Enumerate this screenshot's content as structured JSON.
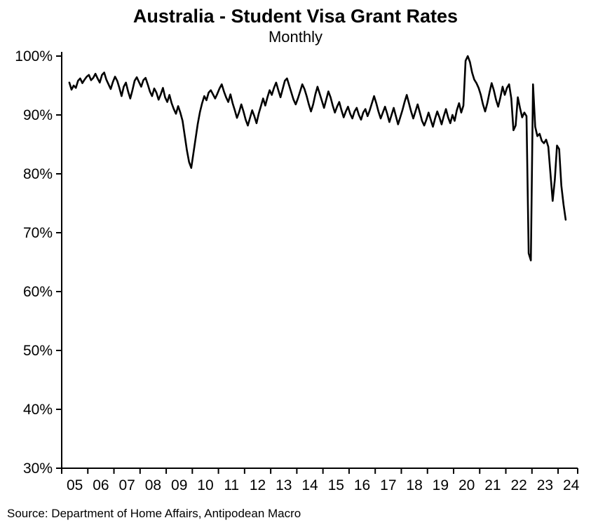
{
  "chart_data": {
    "type": "line",
    "title": "Australia - Student Visa Grant Rates",
    "subtitle": "Monthly",
    "source": "Source: Department of Home Affairs, Antipodean Macro",
    "series_name": "Student visa grant rate",
    "line_color": "#000000",
    "axis_color": "#000000",
    "background_color": "#ffffff",
    "grid": false,
    "legend": false,
    "ylim": [
      30,
      100
    ],
    "y_ticks": [
      {
        "v": 100,
        "label": "100%"
      },
      {
        "v": 90,
        "label": "90%"
      },
      {
        "v": 80,
        "label": "80%"
      },
      {
        "v": 70,
        "label": "70%"
      },
      {
        "v": 60,
        "label": "60%"
      },
      {
        "v": 50,
        "label": "50%"
      },
      {
        "v": 40,
        "label": "40%"
      },
      {
        "v": 30,
        "label": "30%"
      }
    ],
    "x_range": [
      2005,
      2024.75
    ],
    "x_tick_labels": [
      "05",
      "06",
      "07",
      "08",
      "09",
      "10",
      "11",
      "12",
      "13",
      "14",
      "15",
      "16",
      "17",
      "18",
      "19",
      "20",
      "21",
      "22",
      "23",
      "24"
    ],
    "frequency": "monthly",
    "start_year": 2005,
    "start_month": 4,
    "unit": "%",
    "values": [
      95.5,
      94.3,
      95.0,
      94.6,
      95.8,
      96.2,
      95.4,
      96.0,
      96.5,
      96.8,
      95.9,
      96.3,
      97.0,
      96.2,
      95.5,
      96.8,
      97.2,
      96.0,
      95.2,
      94.4,
      95.6,
      96.5,
      95.8,
      94.6,
      93.2,
      94.8,
      95.5,
      94.0,
      92.8,
      94.2,
      95.8,
      96.4,
      95.6,
      94.8,
      95.9,
      96.3,
      95.2,
      94.0,
      93.2,
      94.5,
      93.8,
      92.6,
      93.5,
      94.6,
      93.0,
      92.2,
      93.4,
      92.0,
      91.0,
      90.2,
      91.5,
      90.4,
      89.0,
      86.5,
      84.0,
      82.0,
      81.0,
      83.5,
      86.0,
      88.5,
      90.5,
      92.0,
      93.2,
      92.5,
      93.8,
      94.2,
      93.5,
      92.8,
      93.6,
      94.5,
      95.2,
      94.0,
      93.0,
      92.2,
      93.5,
      92.0,
      90.8,
      89.5,
      90.5,
      91.8,
      90.6,
      89.2,
      88.2,
      89.5,
      90.8,
      89.8,
      88.6,
      90.2,
      91.5,
      92.8,
      91.6,
      93.0,
      94.2,
      93.4,
      94.6,
      95.5,
      94.2,
      93.0,
      94.4,
      95.8,
      96.2,
      95.0,
      93.8,
      92.6,
      91.8,
      92.8,
      94.0,
      95.2,
      94.4,
      93.2,
      91.8,
      90.6,
      91.8,
      93.5,
      94.8,
      93.6,
      92.4,
      91.2,
      92.6,
      94.0,
      93.0,
      91.6,
      90.4,
      91.4,
      92.2,
      90.8,
      89.6,
      90.6,
      91.4,
      90.2,
      89.4,
      90.6,
      91.2,
      90.0,
      89.2,
      90.4,
      91.0,
      89.8,
      90.8,
      92.0,
      93.2,
      92.0,
      90.6,
      89.4,
      90.4,
      91.4,
      90.2,
      88.8,
      90.0,
      91.2,
      89.8,
      88.4,
      89.6,
      90.8,
      92.2,
      93.4,
      92.0,
      90.6,
      89.4,
      90.6,
      91.8,
      90.4,
      89.0,
      88.2,
      89.2,
      90.4,
      89.2,
      88.0,
      89.4,
      90.6,
      89.6,
      88.4,
      89.8,
      91.0,
      89.6,
      88.6,
      90.0,
      89.0,
      90.8,
      92.0,
      90.4,
      91.6,
      99.2,
      100.0,
      99.0,
      97.2,
      96.0,
      95.4,
      94.6,
      93.4,
      91.8,
      90.6,
      92.0,
      93.8,
      95.4,
      94.2,
      92.6,
      91.4,
      93.0,
      94.8,
      93.4,
      94.6,
      95.2,
      92.8,
      87.4,
      88.2,
      93.0,
      91.2,
      89.6,
      90.4,
      89.8,
      66.5,
      65.3,
      95.2,
      88.0,
      86.4,
      86.8,
      85.6,
      85.2,
      85.8,
      84.6,
      80.0,
      75.4,
      79.0,
      84.8,
      84.2,
      78.0,
      74.8,
      72.2
    ]
  }
}
